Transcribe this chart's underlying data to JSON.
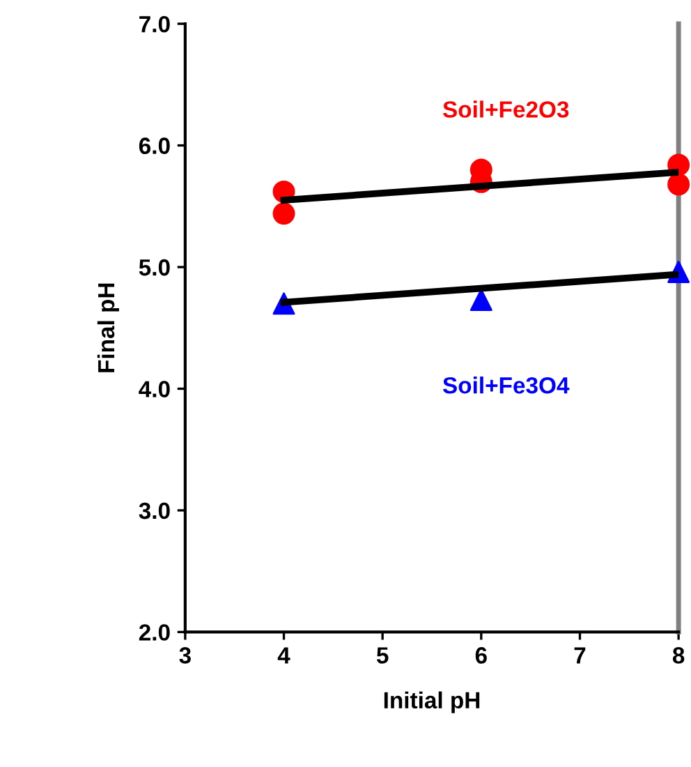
{
  "chart_data": {
    "type": "scatter",
    "xlabel": "Initial pH",
    "ylabel": "Final pH",
    "xlim": [
      3,
      8
    ],
    "ylim": [
      2,
      7
    ],
    "xticks": [
      3,
      4,
      5,
      6,
      7,
      8
    ],
    "yticks": [
      {
        "value": 2,
        "label": "2.0"
      },
      {
        "value": 3,
        "label": "3.0"
      },
      {
        "value": 4,
        "label": "4.0"
      },
      {
        "value": 5,
        "label": "5.0"
      },
      {
        "value": 6,
        "label": "6.0"
      },
      {
        "value": 7,
        "label": "7.0"
      }
    ],
    "grid": false,
    "legend": false,
    "series": [
      {
        "name": "Soil+Fe2O3",
        "color": "#ff0000",
        "marker": "circle",
        "x": [
          4,
          4,
          6,
          6,
          8,
          8
        ],
        "values": [
          5.62,
          5.44,
          5.8,
          5.7,
          5.84,
          5.68
        ]
      },
      {
        "name": "Soil+Fe3O4",
        "color": "#0000ff",
        "marker": "triangle",
        "x": [
          4,
          6,
          8
        ],
        "values": [
          4.7,
          4.73,
          4.96
        ]
      },
      {
        "type": "line",
        "color": "#000000",
        "marker": "none",
        "x": [
          4,
          8
        ],
        "values": [
          5.55,
          5.78
        ]
      },
      {
        "type": "line",
        "color": "#000000",
        "marker": "none",
        "x": [
          4,
          8
        ],
        "values": [
          4.71,
          4.94
        ]
      }
    ]
  }
}
